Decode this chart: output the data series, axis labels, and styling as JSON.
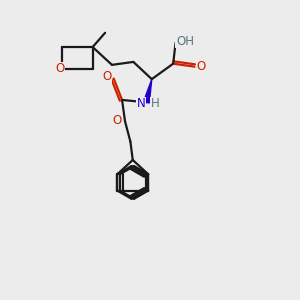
{
  "bg_color": "#ececec",
  "bond_color": "#1a1a1a",
  "oxygen_color": "#cc2200",
  "nitrogen_color": "#2200cc",
  "hydrogen_color": "#557777",
  "line_width": 1.6,
  "font_size": 8.5,
  "xlim": [
    0,
    10
  ],
  "ylim": [
    0,
    10
  ]
}
